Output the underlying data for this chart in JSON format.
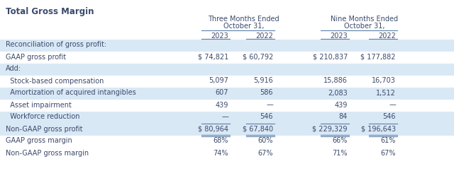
{
  "title": "Total Gross Margin",
  "col_headers": [
    "2023",
    "2022",
    "2023",
    "2022"
  ],
  "group_header1": "Three Months Ended\nOctober 31,",
  "group_header2": "Nine Months Ended\nOctober 31,",
  "rows": [
    {
      "label": "Reconciliation of gross profit:",
      "vals": [
        "",
        "",
        "",
        ""
      ],
      "bg": "light",
      "indent": 0,
      "bold": false
    },
    {
      "label": "GAAP gross profit",
      "vals": [
        "$ 74,821",
        "$ 60,792",
        "$ 210,837",
        "$ 177,882"
      ],
      "bg": "white",
      "indent": 0,
      "bold": false
    },
    {
      "label": "Add:",
      "vals": [
        "",
        "",
        "",
        ""
      ],
      "bg": "light",
      "indent": 0,
      "bold": false
    },
    {
      "label": "  Stock-based compensation",
      "vals": [
        "5,097",
        "5,916",
        "15,886",
        "16,703"
      ],
      "bg": "white",
      "indent": 1,
      "bold": false
    },
    {
      "label": "  Amortization of acquired intangibles",
      "vals": [
        "607",
        "586",
        "2,083",
        "1,512"
      ],
      "bg": "light",
      "indent": 1,
      "bold": false
    },
    {
      "label": "  Asset impairment",
      "vals": [
        "439",
        "—",
        "439",
        "—"
      ],
      "bg": "white",
      "indent": 1,
      "bold": false
    },
    {
      "label": "  Workforce reduction",
      "vals": [
        "—",
        "546",
        "84",
        "546"
      ],
      "bg": "light",
      "indent": 1,
      "bold": false
    },
    {
      "label": "Non-GAAP gross profit",
      "vals": [
        "$ 80,964",
        "$ 67,840",
        "$ 229,329",
        "$ 196,643"
      ],
      "bg": "light",
      "indent": 0,
      "bold": false
    },
    {
      "label": "GAAP gross margin",
      "vals": [
        "68%",
        "60%",
        "66%",
        "61%"
      ],
      "bg": "white",
      "indent": 0,
      "bold": false
    },
    {
      "label": "Non-GAAP gross margin",
      "vals": [
        "74%",
        "67%",
        "71%",
        "67%"
      ],
      "bg": "white",
      "indent": 0,
      "bold": false
    }
  ],
  "bg_light": "#d9e8f5",
  "bg_white": "#ffffff",
  "text_color": "#3b4a6b",
  "line_color": "#5a7fa8",
  "font_size": 7.0,
  "title_font_size": 8.5,
  "fig_w": 6.4,
  "fig_h": 2.53,
  "dpi": 100
}
